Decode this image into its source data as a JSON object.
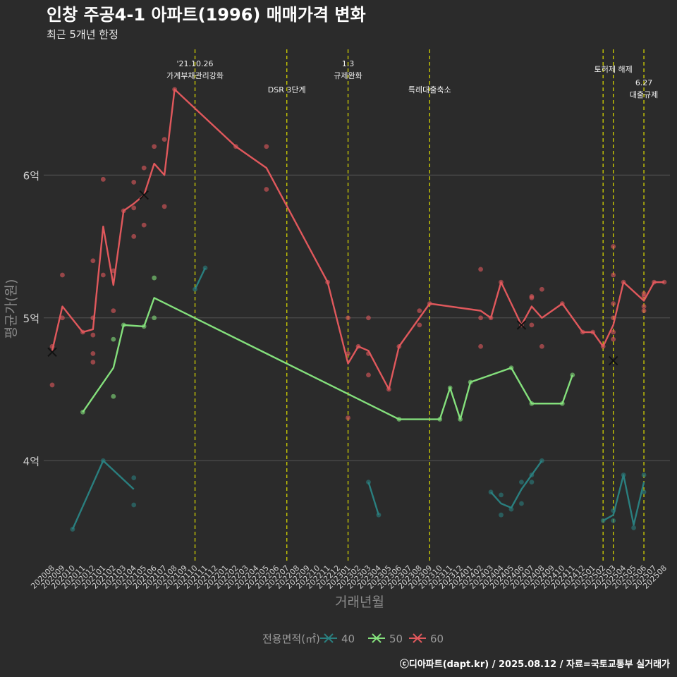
{
  "title": "인창 주공4-1 아파트(1996) 매매가격 변화",
  "subtitle": "최근 5개년 한정",
  "caption": "ⓒ디아파트(dapt.kr) / 2025.08.12 / 자료=국토교통부 실거래가",
  "colors": {
    "background": "#2b2b2b",
    "grid": "#555555",
    "vline": "#d4d400",
    "s40": "#2a7f7f",
    "s50": "#84e07c",
    "s60": "#e0585c",
    "marker": "#111111"
  },
  "chart_data": {
    "type": "line",
    "xlabel": "거래년월",
    "ylabel": "평균가(원)",
    "ylim": [
      3.3,
      6.9
    ],
    "yticks": [
      {
        "value": 4,
        "label": "4억"
      },
      {
        "value": 5,
        "label": "5억"
      },
      {
        "value": 6,
        "label": "6억"
      }
    ],
    "categories": [
      "202008",
      "202009",
      "202010",
      "202011",
      "202012",
      "202101",
      "202102",
      "202103",
      "202104",
      "202105",
      "202106",
      "202107",
      "202108",
      "202109",
      "202110",
      "202111",
      "202112",
      "202201",
      "202202",
      "202203",
      "202204",
      "202205",
      "202206",
      "202207",
      "202208",
      "202209",
      "202210",
      "202211",
      "202212",
      "202301",
      "202302",
      "202303",
      "202304",
      "202305",
      "202306",
      "202307",
      "202308",
      "202309",
      "202310",
      "202311",
      "202312",
      "202401",
      "202402",
      "202403",
      "202404",
      "202405",
      "202406",
      "202407",
      "202408",
      "202409",
      "202410",
      "202411",
      "202412",
      "202501",
      "202502",
      "202503",
      "202504",
      "202505",
      "202506",
      "202507",
      "202508"
    ],
    "legend": {
      "title": "전용면적(㎡)",
      "position": "bottom"
    },
    "series": [
      {
        "name": "40",
        "color_key": "s40",
        "segments": [
          [
            [
              "202010",
              3.52
            ],
            [
              "202101",
              4.0
            ],
            [
              "202104",
              3.8
            ]
          ],
          [
            [
              "202110",
              5.2
            ],
            [
              "202111",
              5.35
            ]
          ],
          [
            [
              "202303",
              3.85
            ],
            [
              "202304",
              3.62
            ]
          ],
          [
            [
              "202403",
              3.78
            ],
            [
              "202404",
              3.7
            ],
            [
              "202405",
              3.67
            ],
            [
              "202406",
              3.8
            ],
            [
              "202407",
              3.9
            ],
            [
              "202408",
              4.0
            ]
          ],
          [
            [
              "202502",
              3.58
            ],
            [
              "202503",
              3.62
            ],
            [
              "202504",
              3.9
            ],
            [
              "202505",
              3.55
            ],
            [
              "202506",
              3.85
            ]
          ]
        ],
        "points": [
          [
            "202010",
            3.52
          ],
          [
            "202101",
            4.0
          ],
          [
            "202104",
            3.88
          ],
          [
            "202104",
            3.69
          ],
          [
            "202110",
            5.2
          ],
          [
            "202111",
            5.35
          ],
          [
            "202303",
            3.85
          ],
          [
            "202304",
            3.62
          ],
          [
            "202403",
            3.78
          ],
          [
            "202404",
            3.76
          ],
          [
            "202404",
            3.62
          ],
          [
            "202405",
            3.66
          ],
          [
            "202406",
            3.7
          ],
          [
            "202406",
            3.85
          ],
          [
            "202407",
            3.85
          ],
          [
            "202407",
            3.9
          ],
          [
            "202408",
            4.0
          ],
          [
            "202502",
            3.58
          ],
          [
            "202503",
            3.58
          ],
          [
            "202503",
            3.65
          ],
          [
            "202504",
            3.9
          ],
          [
            "202505",
            3.53
          ],
          [
            "202506",
            3.78
          ],
          [
            "202506",
            3.9
          ]
        ],
        "markers": []
      },
      {
        "name": "50",
        "color_key": "s50",
        "segments": [
          [
            [
              "202011",
              4.34
            ],
            [
              "202102",
              4.65
            ],
            [
              "202103",
              4.95
            ],
            [
              "202105",
              4.94
            ],
            [
              "202106",
              5.14
            ],
            [
              "202306",
              4.29
            ],
            [
              "202310",
              4.29
            ],
            [
              "202311",
              4.51
            ],
            [
              "202312",
              4.29
            ],
            [
              "202401",
              4.55
            ],
            [
              "202405",
              4.65
            ],
            [
              "202407",
              4.4
            ],
            [
              "202410",
              4.4
            ],
            [
              "202411",
              4.6
            ]
          ]
        ],
        "points": [
          [
            "202011",
            4.34
          ],
          [
            "202102",
            4.85
          ],
          [
            "202102",
            4.45
          ],
          [
            "202103",
            4.95
          ],
          [
            "202105",
            4.94
          ],
          [
            "202106",
            5.28
          ],
          [
            "202106",
            5.0
          ],
          [
            "202306",
            4.29
          ],
          [
            "202310",
            4.29
          ],
          [
            "202311",
            4.51
          ],
          [
            "202312",
            4.29
          ],
          [
            "202401",
            4.55
          ],
          [
            "202405",
            4.65
          ],
          [
            "202407",
            4.4
          ],
          [
            "202410",
            4.4
          ],
          [
            "202411",
            4.6
          ]
        ],
        "markers": []
      },
      {
        "name": "60",
        "color_key": "s60",
        "segments": [
          [
            [
              "202008",
              4.77
            ],
            [
              "202009",
              5.08
            ],
            [
              "202011",
              4.9
            ],
            [
              "202012",
              4.92
            ],
            [
              "202101",
              5.64
            ],
            [
              "202102",
              5.23
            ],
            [
              "202103",
              5.75
            ],
            [
              "202104",
              5.8
            ],
            [
              "202105",
              5.86
            ],
            [
              "202106",
              6.08
            ],
            [
              "202107",
              6.0
            ],
            [
              "202108",
              6.6
            ],
            [
              "202202",
              6.2
            ],
            [
              "202205",
              6.05
            ],
            [
              "202211",
              5.25
            ],
            [
              "202301",
              4.68
            ],
            [
              "202302",
              4.8
            ],
            [
              "202303",
              4.77
            ],
            [
              "202305",
              4.5
            ],
            [
              "202306",
              4.8
            ],
            [
              "202309",
              5.1
            ],
            [
              "202402",
              5.05
            ],
            [
              "202403",
              5.0
            ],
            [
              "202404",
              5.25
            ],
            [
              "202406",
              4.95
            ],
            [
              "202407",
              5.08
            ],
            [
              "202408",
              5.0
            ],
            [
              "202410",
              5.1
            ],
            [
              "202412",
              4.9
            ],
            [
              "202501",
              4.9
            ],
            [
              "202502",
              4.8
            ],
            [
              "202503",
              4.95
            ],
            [
              "202504",
              5.25
            ],
            [
              "202506",
              5.12
            ],
            [
              "202507",
              5.25
            ],
            [
              "202508",
              5.25
            ]
          ]
        ],
        "points": [
          [
            "202008",
            4.8
          ],
          [
            "202008",
            4.53
          ],
          [
            "202009",
            5.0
          ],
          [
            "202009",
            5.3
          ],
          [
            "202011",
            4.9
          ],
          [
            "202012",
            5.4
          ],
          [
            "202012",
            5.0
          ],
          [
            "202012",
            4.88
          ],
          [
            "202012",
            4.75
          ],
          [
            "202012",
            4.69
          ],
          [
            "202101",
            5.97
          ],
          [
            "202101",
            5.3
          ],
          [
            "202102",
            5.33
          ],
          [
            "202102",
            5.05
          ],
          [
            "202103",
            5.75
          ],
          [
            "202104",
            5.95
          ],
          [
            "202104",
            5.77
          ],
          [
            "202104",
            5.57
          ],
          [
            "202105",
            6.05
          ],
          [
            "202105",
            5.65
          ],
          [
            "202106",
            6.2
          ],
          [
            "202107",
            6.25
          ],
          [
            "202107",
            5.78
          ],
          [
            "202108",
            6.6
          ],
          [
            "202202",
            6.2
          ],
          [
            "202205",
            6.2
          ],
          [
            "202205",
            5.9
          ],
          [
            "202211",
            5.25
          ],
          [
            "202301",
            5.0
          ],
          [
            "202301",
            4.3
          ],
          [
            "202301",
            4.75
          ],
          [
            "202302",
            4.8
          ],
          [
            "202303",
            5.0
          ],
          [
            "202303",
            4.75
          ],
          [
            "202303",
            4.6
          ],
          [
            "202305",
            4.5
          ],
          [
            "202306",
            4.8
          ],
          [
            "202308",
            5.05
          ],
          [
            "202308",
            4.95
          ],
          [
            "202309",
            5.1
          ],
          [
            "202402",
            5.34
          ],
          [
            "202402",
            4.8
          ],
          [
            "202402",
            5.0
          ],
          [
            "202403",
            5.0
          ],
          [
            "202404",
            5.25
          ],
          [
            "202406",
            4.95
          ],
          [
            "202407",
            5.15
          ],
          [
            "202407",
            5.14
          ],
          [
            "202407",
            4.95
          ],
          [
            "202408",
            5.2
          ],
          [
            "202408",
            4.8
          ],
          [
            "202410",
            5.1
          ],
          [
            "202412",
            4.9
          ],
          [
            "202501",
            4.9
          ],
          [
            "202502",
            4.8
          ],
          [
            "202503",
            5.5
          ],
          [
            "202503",
            5.3
          ],
          [
            "202503",
            5.1
          ],
          [
            "202503",
            4.9
          ],
          [
            "202503",
            4.85
          ],
          [
            "202503",
            5.0
          ],
          [
            "202504",
            5.25
          ],
          [
            "202506",
            5.15
          ],
          [
            "202506",
            5.17
          ],
          [
            "202506",
            5.05
          ],
          [
            "202506",
            5.08
          ],
          [
            "202507",
            5.25
          ],
          [
            "202508",
            5.25
          ]
        ],
        "markers": [
          [
            "202008",
            4.76
          ],
          [
            "202105",
            5.86
          ],
          [
            "202406",
            4.95
          ],
          [
            "202503",
            4.7
          ]
        ]
      }
    ],
    "annotations": [
      {
        "x": "202110",
        "lines": [
          "'21.10.26",
          "가계부채관리강화"
        ],
        "row": 0
      },
      {
        "x": "202207",
        "lines": [
          "DSR 3단계"
        ],
        "row": 2
      },
      {
        "x": "202301",
        "lines": [
          "1.3",
          "규제완화"
        ],
        "row": 0
      },
      {
        "x": "202309",
        "lines": [
          "특례대출축소"
        ],
        "row": 2
      },
      {
        "x": "202502",
        "lines": [],
        "row": 0
      },
      {
        "x": "202503",
        "lines": [
          "토허제 해제"
        ],
        "row": 1
      },
      {
        "x": "202506",
        "lines": [
          "6.27",
          "대출규제"
        ],
        "row": 3
      }
    ]
  }
}
